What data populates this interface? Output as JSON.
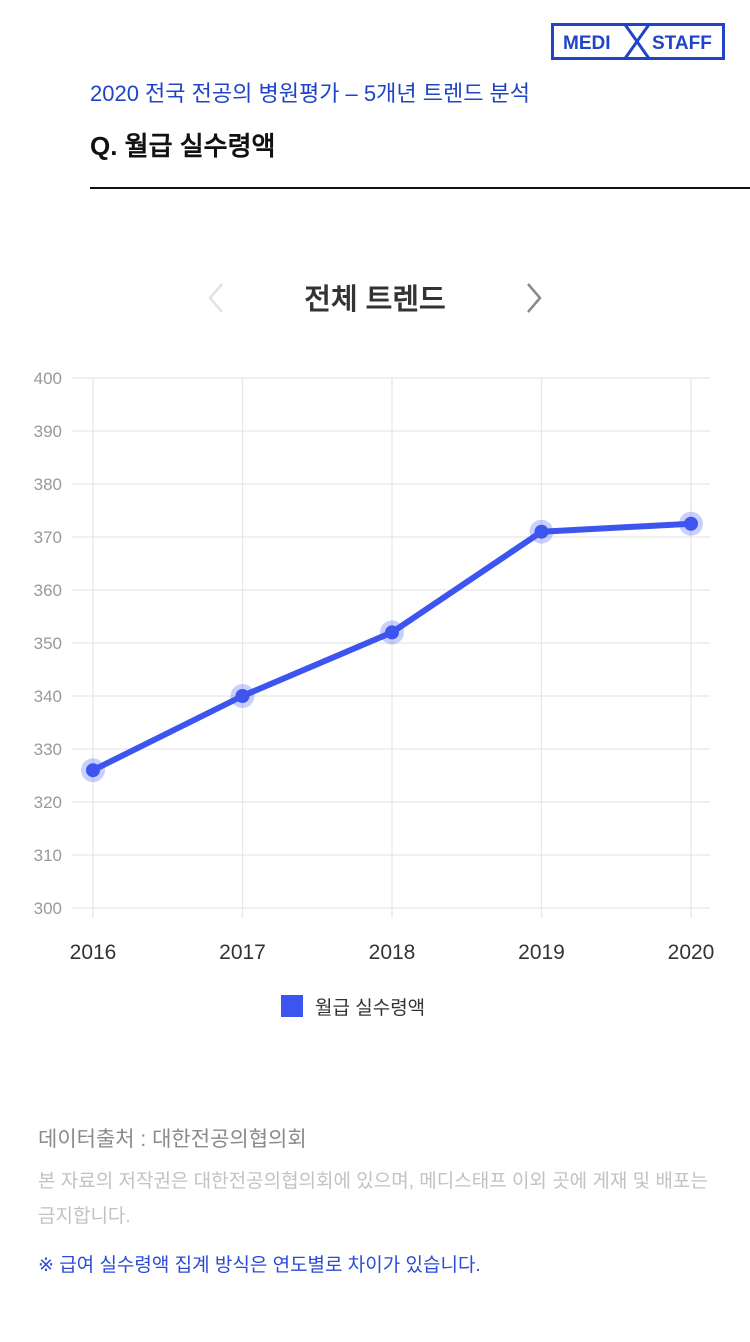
{
  "header": {
    "logo_left": "MEDI",
    "logo_right": "STAFF",
    "subtitle": "2020 전국 전공의 병원평가 – 5개년 트렌드 분석",
    "question": "Q. 월급 실수령액"
  },
  "chart_nav": {
    "title": "전체 트렌드"
  },
  "chart_data": {
    "type": "line",
    "x": [
      "2016",
      "2017",
      "2018",
      "2019",
      "2020"
    ],
    "series": [
      {
        "name": "월급 실수령액",
        "values": [
          326,
          340,
          352,
          371,
          372.5
        ],
        "color": "#3d55ef"
      }
    ],
    "ylim": [
      300,
      400
    ],
    "yticks": [
      300,
      310,
      320,
      330,
      340,
      350,
      360,
      370,
      380,
      390,
      400
    ],
    "grid": true,
    "legend_position": "bottom-center"
  },
  "legend": {
    "label": "월급 실수령액"
  },
  "footer": {
    "source": "데이터출처 : 대한전공의협의회",
    "copyright": "본 자료의 저작권은 대한전공의협의회에 있으며, 메디스태프 이외 곳에 게재 및 배포는 금지합니다.",
    "note": "※ 급여 실수령액 집계 방식은 연도별로 차이가 있습니다."
  },
  "colors": {
    "brand_blue": "#1f44c8",
    "series_blue": "#3d55ef",
    "grid": "#e6e6e6"
  }
}
